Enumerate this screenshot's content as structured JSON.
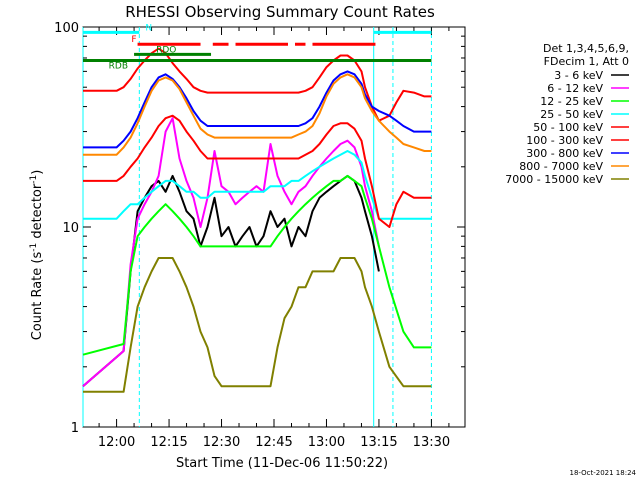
{
  "chart_data": {
    "type": "line",
    "title": "RHESSI Observing Summary Count Rates",
    "xlabel": "Start Time (11-Dec-06 11:50:22)",
    "ylabel_prefix": "Count Rate (s",
    "ylabel_exp": "-1",
    "ylabel_mid": " detector",
    "ylabel_suffix": ")",
    "y_log": true,
    "ylim": [
      1,
      100
    ],
    "xlim_minutes": [
      -9.6,
      99.6
    ],
    "x_ticks": [
      {
        "label": "12:00",
        "t": 0
      },
      {
        "label": "12:15",
        "t": 15
      },
      {
        "label": "12:30",
        "t": 30
      },
      {
        "label": "12:45",
        "t": 45
      },
      {
        "label": "13:00",
        "t": 60
      },
      {
        "label": "13:15",
        "t": 75
      },
      {
        "label": "13:30",
        "t": 90
      }
    ],
    "y_ticks": [
      {
        "label": "1",
        "v": 1
      },
      {
        "label": "10",
        "v": 10
      },
      {
        "label": "100",
        "v": 100
      }
    ],
    "legend_header": [
      "Det 1,3,4,5,6,9,",
      "FDecim 1, Att 0"
    ],
    "series": [
      {
        "name": "3 - 6 keV",
        "color": "#000000",
        "t": [
          -9.6,
          2,
          4,
          6,
          8,
          10,
          12,
          14,
          16,
          18,
          20,
          22,
          24,
          26,
          28,
          30,
          32,
          34,
          36,
          38,
          40,
          42,
          44,
          46,
          48,
          50,
          52,
          54,
          56,
          58,
          60,
          62,
          64,
          66,
          68,
          70,
          71,
          73,
          75
        ],
        "v": [
          1.6,
          2.4,
          6,
          12,
          14,
          16,
          17,
          15,
          18,
          15,
          12,
          11,
          8,
          10,
          14,
          9,
          10,
          8,
          9,
          10,
          8,
          9,
          12,
          10,
          11,
          8,
          10,
          9,
          12,
          14,
          15,
          16,
          17,
          18,
          17,
          14,
          12,
          9,
          6
        ]
      },
      {
        "name": "6 - 12 keV",
        "color": "#ff00ff",
        "t": [
          -9.6,
          2,
          4,
          6,
          8,
          10,
          12,
          14,
          16,
          18,
          20,
          22,
          24,
          26,
          28,
          30,
          32,
          34,
          36,
          38,
          40,
          42,
          44,
          46,
          48,
          50,
          52,
          54,
          56,
          58,
          60,
          62,
          64,
          66,
          68,
          70,
          71,
          73,
          75
        ],
        "v": [
          1.6,
          2.4,
          6.5,
          11,
          13,
          15,
          18,
          30,
          35,
          22,
          17,
          14,
          10,
          14,
          24,
          16,
          15,
          13,
          14,
          15,
          16,
          15,
          26,
          18,
          15,
          13,
          15,
          16,
          18,
          20,
          22,
          24,
          26,
          27,
          25,
          20,
          16,
          12,
          8
        ]
      },
      {
        "name": "12 - 25 keV",
        "color": "#00ff00",
        "t": [
          -9.6,
          2,
          4,
          6,
          8,
          10,
          12,
          14,
          16,
          18,
          20,
          22,
          24,
          26,
          28,
          30,
          32,
          34,
          36,
          38,
          40,
          42,
          44,
          46,
          48,
          50,
          52,
          54,
          56,
          58,
          60,
          62,
          64,
          66,
          68,
          70,
          71,
          73,
          75,
          78,
          82,
          85,
          88,
          90
        ],
        "v": [
          2.3,
          2.6,
          6,
          9,
          10,
          11,
          12,
          13,
          12,
          11,
          10,
          9,
          8,
          8,
          8,
          8,
          8,
          8,
          8,
          8,
          8,
          8,
          8,
          9,
          10,
          11,
          12,
          13,
          14,
          15,
          16,
          17,
          17,
          18,
          17,
          16,
          14,
          11,
          8,
          5,
          3,
          2.5,
          2.5,
          2.5
        ]
      },
      {
        "name": "25 - 50 keV",
        "color": "#00ffff",
        "t": [
          -9.6,
          -4,
          0,
          2,
          4,
          6,
          8,
          10,
          12,
          14,
          16,
          18,
          20,
          22,
          24,
          26,
          28,
          30,
          32,
          34,
          36,
          38,
          40,
          42,
          44,
          46,
          48,
          50,
          52,
          54,
          56,
          58,
          60,
          62,
          64,
          66,
          68,
          70,
          71,
          73,
          75,
          78,
          80,
          85,
          90
        ],
        "v": [
          11,
          11,
          11,
          12,
          13,
          13,
          14,
          15,
          16,
          17,
          17,
          16,
          15,
          15,
          14,
          14,
          15,
          15,
          15,
          15,
          15,
          15,
          15,
          15,
          16,
          16,
          16,
          17,
          17,
          18,
          19,
          20,
          21,
          22,
          23,
          24,
          23,
          21,
          18,
          14,
          11,
          11,
          11,
          11,
          11
        ]
      },
      {
        "name": "50 - 100 keV",
        "color": "#ff0000",
        "t": [
          -9.6,
          -4,
          0,
          2,
          4,
          6,
          8,
          10,
          12,
          14,
          16,
          18,
          20,
          22,
          24,
          26,
          28,
          30,
          32,
          34,
          36,
          38,
          40,
          42,
          44,
          46,
          48,
          50,
          52,
          54,
          56,
          58,
          60,
          62,
          64,
          66,
          68,
          70,
          71,
          73,
          75,
          78,
          80,
          82,
          85,
          88,
          90
        ],
        "v": [
          17,
          17,
          17,
          18,
          20,
          22,
          25,
          28,
          32,
          35,
          36,
          34,
          30,
          27,
          24,
          22,
          22,
          22,
          22,
          22,
          22,
          22,
          22,
          22,
          22,
          22,
          22,
          22,
          22,
          23,
          24,
          26,
          29,
          32,
          33,
          33,
          31,
          27,
          22,
          16,
          11,
          10,
          13,
          15,
          14,
          14,
          14
        ]
      },
      {
        "name": "100 - 300 keV",
        "color": "#ff0000",
        "t": [
          -9.6,
          -4,
          0,
          2,
          4,
          6,
          8,
          10,
          12,
          14,
          16,
          18,
          20,
          22,
          24,
          26,
          28,
          30,
          32,
          34,
          36,
          38,
          40,
          42,
          44,
          46,
          48,
          50,
          52,
          54,
          56,
          58,
          60,
          62,
          64,
          66,
          68,
          70,
          71,
          73,
          75,
          78,
          80,
          82,
          85,
          88,
          90
        ],
        "v": [
          48,
          48,
          48,
          50,
          55,
          62,
          68,
          74,
          78,
          74,
          66,
          60,
          55,
          50,
          48,
          47,
          47,
          47,
          47,
          47,
          47,
          47,
          47,
          47,
          47,
          47,
          47,
          47,
          47,
          48,
          50,
          56,
          63,
          68,
          72,
          72,
          68,
          60,
          50,
          40,
          34,
          36,
          42,
          48,
          47,
          45,
          45
        ]
      },
      {
        "name": "300 - 800 keV",
        "color": "#0000ff",
        "t": [
          -9.6,
          -4,
          0,
          2,
          4,
          6,
          8,
          10,
          12,
          14,
          16,
          18,
          20,
          22,
          24,
          26,
          28,
          30,
          32,
          34,
          36,
          38,
          40,
          42,
          44,
          46,
          48,
          50,
          52,
          54,
          56,
          58,
          60,
          62,
          64,
          66,
          68,
          70,
          71,
          73,
          75,
          78,
          80,
          82,
          85,
          88,
          90
        ],
        "v": [
          25,
          25,
          25,
          27,
          30,
          35,
          42,
          50,
          56,
          58,
          55,
          50,
          44,
          38,
          34,
          32,
          32,
          32,
          32,
          32,
          32,
          32,
          32,
          32,
          32,
          32,
          32,
          32,
          32,
          33,
          35,
          40,
          47,
          54,
          58,
          60,
          58,
          52,
          46,
          40,
          38,
          36,
          34,
          32,
          30,
          30,
          30
        ]
      },
      {
        "name": "800 - 7000 keV",
        "color": "#ff8800",
        "t": [
          -9.6,
          -4,
          0,
          2,
          4,
          6,
          8,
          10,
          12,
          14,
          16,
          18,
          20,
          22,
          24,
          26,
          28,
          30,
          32,
          34,
          36,
          38,
          40,
          42,
          44,
          46,
          48,
          50,
          52,
          54,
          56,
          58,
          60,
          62,
          64,
          66,
          68,
          70,
          71,
          73,
          75,
          78,
          80,
          82,
          85,
          88,
          90
        ],
        "v": [
          23,
          23,
          23,
          25,
          28,
          33,
          40,
          48,
          54,
          56,
          54,
          49,
          42,
          36,
          31,
          29,
          28,
          28,
          28,
          28,
          28,
          28,
          28,
          28,
          28,
          28,
          28,
          28,
          29,
          30,
          32,
          37,
          45,
          52,
          56,
          58,
          56,
          50,
          44,
          38,
          34,
          30,
          28,
          26,
          25,
          24,
          24
        ]
      },
      {
        "name": "7000 - 15000 keV",
        "color": "#808000",
        "t": [
          -9.6,
          2,
          4,
          6,
          8,
          10,
          12,
          14,
          16,
          18,
          20,
          22,
          24,
          26,
          28,
          30,
          32,
          34,
          36,
          38,
          40,
          42,
          44,
          46,
          48,
          50,
          52,
          54,
          56,
          58,
          60,
          62,
          64,
          66,
          68,
          70,
          71,
          73,
          75,
          78,
          82,
          85,
          88,
          90
        ],
        "v": [
          1.5,
          1.5,
          2.5,
          4,
          5,
          6,
          7,
          7,
          7,
          6,
          5,
          4,
          3,
          2.5,
          1.8,
          1.6,
          1.6,
          1.6,
          1.6,
          1.6,
          1.6,
          1.6,
          1.6,
          2.5,
          3.5,
          4,
          5,
          5,
          6,
          6,
          6,
          6,
          7,
          7,
          7,
          6,
          5,
          4,
          3,
          2,
          1.6,
          1.6,
          1.6,
          1.6
        ]
      }
    ],
    "state_bars": [
      {
        "label": "N",
        "color": "#00ffff",
        "y_value": 94,
        "segments": [
          [
            -9.6,
            6.5
          ],
          [
            73.5,
            90
          ]
        ]
      },
      {
        "label": "F",
        "color": "#ff0000",
        "y_value": 82,
        "segments": [
          [
            6,
            24
          ],
          [
            27.5,
            32
          ],
          [
            34,
            49
          ],
          [
            51,
            54
          ],
          [
            56,
            74
          ]
        ]
      },
      {
        "label": "RDO",
        "color": "#008000",
        "y_value": 73,
        "segments": [
          [
            5,
            27
          ]
        ]
      },
      {
        "label": "RDB",
        "color": "#008000",
        "y_value": 68,
        "segments": [
          [
            -9.6,
            90
          ]
        ]
      }
    ],
    "vertical_markers": [
      {
        "t": -9.6,
        "color": "#00ffff",
        "style": "solid"
      },
      {
        "t": 6.5,
        "color": "#00ffff",
        "style": "dashed"
      },
      {
        "t": 73.5,
        "color": "#00ffff",
        "style": "solid"
      },
      {
        "t": 79,
        "color": "#00ffff",
        "style": "dashed"
      },
      {
        "t": 90,
        "color": "#00ffff",
        "style": "dashed"
      }
    ]
  },
  "footer": {
    "timestamp": "18-Oct-2021 18:24"
  }
}
